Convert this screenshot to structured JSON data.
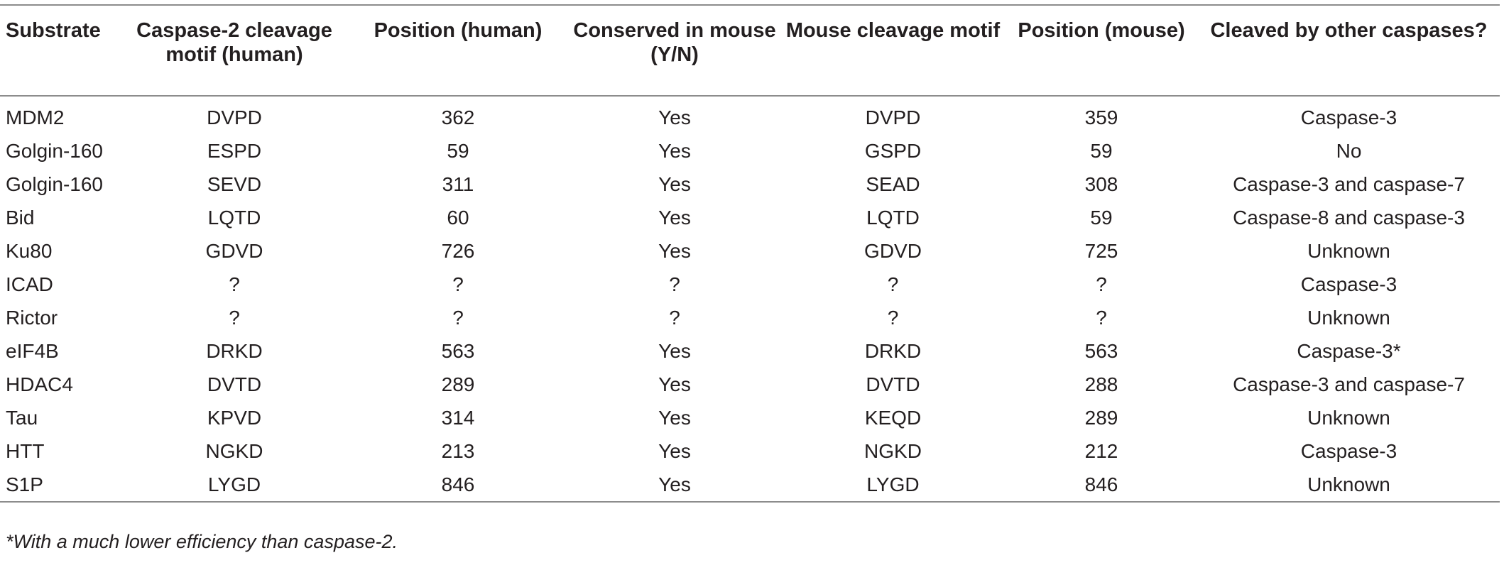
{
  "table": {
    "headers": [
      "Substrate",
      "Caspase-2 cleavage motif (human)",
      "Position (human)",
      "Conserved in mouse (Y/N)",
      "Mouse cleavage motif",
      "Position (mouse)",
      "Cleaved by other caspases?"
    ],
    "rows": [
      [
        "MDM2",
        "DVPD",
        "362",
        "Yes",
        "DVPD",
        "359",
        "Caspase-3"
      ],
      [
        "Golgin-160",
        "ESPD",
        "59",
        "Yes",
        "GSPD",
        "59",
        "No"
      ],
      [
        "Golgin-160",
        "SEVD",
        "311",
        "Yes",
        "SEAD",
        "308",
        "Caspase-3 and caspase-7"
      ],
      [
        "Bid",
        "LQTD",
        "60",
        "Yes",
        "LQTD",
        "59",
        "Caspase-8 and caspase-3"
      ],
      [
        "Ku80",
        "GDVD",
        "726",
        "Yes",
        "GDVD",
        "725",
        "Unknown"
      ],
      [
        "ICAD",
        "?",
        "?",
        "?",
        "?",
        "?",
        "Caspase-3"
      ],
      [
        "Rictor",
        "?",
        "?",
        "?",
        "?",
        "?",
        "Unknown"
      ],
      [
        "eIF4B",
        "DRKD",
        "563",
        "Yes",
        "DRKD",
        "563",
        "Caspase-3*"
      ],
      [
        "HDAC4",
        "DVTD",
        "289",
        "Yes",
        "DVTD",
        "288",
        "Caspase-3 and caspase-7"
      ],
      [
        "Tau",
        "KPVD",
        "314",
        "Yes",
        "KEQD",
        "289",
        "Unknown"
      ],
      [
        "HTT",
        "NGKD",
        "213",
        "Yes",
        "NGKD",
        "212",
        "Caspase-3"
      ],
      [
        "S1P",
        "LYGD",
        "846",
        "Yes",
        "LYGD",
        "846",
        "Unknown"
      ]
    ]
  },
  "footnote": "*With a much lower efficiency than caspase-2."
}
